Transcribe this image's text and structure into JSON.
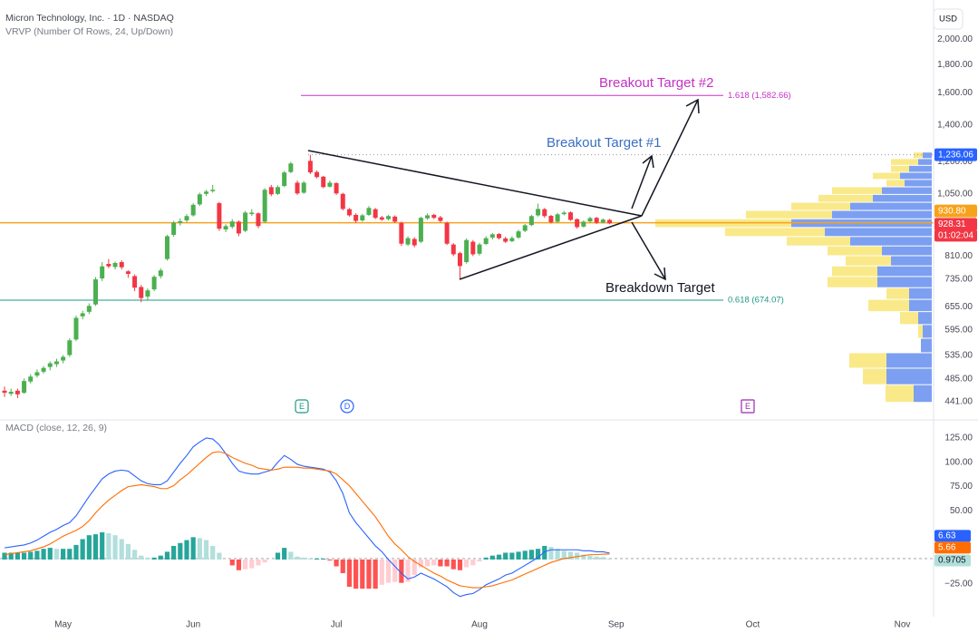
{
  "chart_data": [
    {
      "type": "candlestick",
      "title": "Micron Technology, Inc. · 1D · NASDAQ",
      "currency": "USD",
      "countdown": "01:02:04",
      "log": true,
      "grid": false,
      "xlim": [
        -0.7,
        142.8
      ],
      "ylim": [
        413.7,
        2357
      ],
      "yticks": [
        {
          "value": 2000,
          "label": "2,000.00"
        },
        {
          "value": 1800,
          "label": "1,800.00"
        },
        {
          "value": 1600,
          "label": "1,600.00"
        },
        {
          "value": 1400,
          "label": "1,400.00"
        },
        {
          "value": 1200,
          "label": "1,200.00"
        },
        {
          "value": 1050,
          "label": "1,050.00"
        },
        {
          "value": 810,
          "label": "810.00"
        },
        {
          "value": 735,
          "label": "735.00"
        },
        {
          "value": 655,
          "label": "655.00"
        },
        {
          "value": 595,
          "label": "595.00"
        },
        {
          "value": 535,
          "label": "535.00"
        },
        {
          "value": 485,
          "label": "485.00"
        },
        {
          "value": 441,
          "label": "441.00"
        }
      ],
      "up_color": "#4caf50",
      "down_color": "#f23645",
      "candles": [
        [
          462,
          470,
          450,
          458
        ],
        [
          456,
          466,
          452,
          460
        ],
        [
          462,
          466,
          448,
          455
        ],
        [
          458,
          486,
          456,
          481
        ],
        [
          480,
          495,
          476,
          490
        ],
        [
          492,
          505,
          488,
          499
        ],
        [
          500,
          512,
          496,
          508
        ],
        [
          510,
          522,
          503,
          518
        ],
        [
          516,
          528,
          510,
          522
        ],
        [
          524,
          536,
          518,
          532
        ],
        [
          536,
          575,
          532,
          570
        ],
        [
          572,
          632,
          568,
          626
        ],
        [
          630,
          645,
          622,
          638
        ],
        [
          642,
          665,
          636,
          658
        ],
        [
          662,
          742,
          658,
          735
        ],
        [
          738,
          790,
          730,
          776
        ],
        [
          784,
          800,
          770,
          776
        ],
        [
          774,
          792,
          766,
          787
        ],
        [
          790,
          796,
          766,
          773
        ],
        [
          760,
          764,
          740,
          752
        ],
        [
          745,
          750,
          700,
          710
        ],
        [
          712,
          718,
          668,
          680
        ],
        [
          684,
          708,
          675,
          702
        ],
        [
          705,
          748,
          700,
          743
        ],
        [
          745,
          770,
          738,
          763
        ],
        [
          800,
          885,
          795,
          880
        ],
        [
          885,
          938,
          878,
          931
        ],
        [
          930,
          948,
          920,
          937
        ],
        [
          940,
          965,
          932,
          957
        ],
        [
          960,
          1010,
          955,
          1003
        ],
        [
          1005,
          1055,
          998,
          1048
        ],
        [
          1050,
          1068,
          1040,
          1060
        ],
        [
          1062,
          1090,
          1055,
          1068
        ],
        [
          1010,
          1015,
          900,
          908
        ],
        [
          905,
          925,
          895,
          918
        ],
        [
          915,
          945,
          908,
          936
        ],
        [
          935,
          940,
          880,
          890
        ],
        [
          900,
          978,
          895,
          971
        ],
        [
          965,
          985,
          958,
          971
        ],
        [
          968,
          972,
          910,
          918
        ],
        [
          935,
          1075,
          930,
          1068
        ],
        [
          1080,
          1090,
          1040,
          1048
        ],
        [
          1050,
          1088,
          1045,
          1080
        ],
        [
          1085,
          1155,
          1080,
          1148
        ],
        [
          1150,
          1200,
          1145,
          1192
        ],
        [
          1100,
          1110,
          1045,
          1052
        ],
        [
          1055,
          1108,
          1050,
          1100
        ],
        [
          1205,
          1236,
          1140,
          1148
        ],
        [
          1150,
          1158,
          1120,
          1126
        ],
        [
          1128,
          1132,
          1075,
          1080
        ],
        [
          1082,
          1110,
          1078,
          1100
        ],
        [
          1098,
          1102,
          1045,
          1052
        ],
        [
          1050,
          1055,
          980,
          986
        ],
        [
          985,
          990,
          955,
          960
        ],
        [
          962,
          968,
          930,
          938
        ],
        [
          940,
          966,
          935,
          960
        ],
        [
          962,
          998,
          958,
          990
        ],
        [
          985,
          990,
          945,
          950
        ],
        [
          952,
          958,
          938,
          943
        ],
        [
          945,
          962,
          940,
          957
        ],
        [
          955,
          960,
          930,
          935
        ],
        [
          930,
          935,
          845,
          853
        ],
        [
          850,
          880,
          845,
          873
        ],
        [
          870,
          876,
          840,
          847
        ],
        [
          860,
          955,
          855,
          950
        ],
        [
          948,
          968,
          942,
          960
        ],
        [
          962,
          966,
          945,
          950
        ],
        [
          952,
          958,
          932,
          938
        ],
        [
          930,
          935,
          848,
          853
        ],
        [
          850,
          855,
          810,
          816
        ],
        [
          820,
          825,
          735,
          777
        ],
        [
          790,
          872,
          785,
          866
        ],
        [
          860,
          866,
          810,
          816
        ],
        [
          818,
          856,
          812,
          850
        ],
        [
          852,
          880,
          848,
          873
        ],
        [
          875,
          892,
          868,
          887
        ],
        [
          888,
          892,
          868,
          873
        ],
        [
          872,
          878,
          855,
          860
        ],
        [
          862,
          880,
          858,
          873
        ],
        [
          875,
          904,
          870,
          898
        ],
        [
          900,
          926,
          895,
          921
        ],
        [
          922,
          962,
          918,
          957
        ],
        [
          960,
          1008,
          955,
          986
        ],
        [
          985,
          990,
          950,
          957
        ],
        [
          958,
          962,
          928,
          933
        ],
        [
          935,
          970,
          930,
          964
        ],
        [
          965,
          978,
          960,
          971
        ],
        [
          972,
          976,
          938,
          942
        ],
        [
          945,
          948,
          908,
          914
        ],
        [
          916,
          940,
          912,
          935
        ],
        [
          936,
          955,
          930,
          949
        ],
        [
          950,
          954,
          926,
          931
        ],
        [
          932,
          948,
          928,
          943
        ],
        [
          942,
          946,
          925,
          928.31
        ]
      ],
      "levels": [
        {
          "value": 1582.66,
          "label": "1.618 (1,582.66)",
          "color": "#c530c5"
        },
        {
          "value": 674.07,
          "label": "0.618 (674.07)",
          "color": "#1e9886"
        }
      ],
      "price_labels": [
        {
          "value": 1236.06,
          "label": "1,236.06",
          "color": "#2962ff"
        },
        {
          "value": 930.8,
          "label": "930.80",
          "color": "#f7a21b"
        },
        {
          "value": 928.31,
          "label": "928.31",
          "color": "#f23645"
        }
      ],
      "annotations": [
        {
          "text": "Breakout Target #2",
          "color": "#c530c5"
        },
        {
          "text": "Breakout Target #1",
          "color": "#3a6fc4"
        },
        {
          "text": "Breakdown Target",
          "color": "#131722"
        }
      ],
      "events": [
        "E",
        "D",
        "E"
      ],
      "volume_profile": {
        "title": "VRVP (Number Of Rows, 24, Up/Down)",
        "up_color": "#f7e36b",
        "down_color": "#5b87ee",
        "bins": [
          440,
          473.75,
          507.5,
          541.25,
          575,
          608.75,
          642.5,
          676.25,
          710,
          743.75,
          777.5,
          811.25,
          845,
          878.75,
          912.5,
          946.25,
          980,
          1013.75,
          1047.5,
          1081.25,
          1115,
          1148.75,
          1182.5,
          1216.25,
          1250
        ],
        "up": [
          31,
          26,
          41,
          0,
          5,
          20,
          45,
          25,
          55,
          50,
          50,
          60,
          70,
          110,
          150,
          95,
          65,
          60,
          55,
          20,
          30,
          20,
          30,
          10
        ],
        "down": [
          20,
          50,
          50,
          12,
          10,
          15,
          25,
          25,
          60,
          60,
          45,
          55,
          90,
          118,
          155,
          110,
          90,
          65,
          55,
          30,
          35,
          25,
          15,
          10
        ]
      }
    },
    {
      "type": "macd",
      "title": "MACD (close, 12, 26, 9)",
      "xlim": [
        -0.7,
        142.8
      ],
      "ylim": [
        -58.8,
        141.8
      ],
      "yticks": [
        {
          "value": 125,
          "label": "125.00"
        },
        {
          "value": 100,
          "label": "100.00"
        },
        {
          "value": 75,
          "label": "75.00"
        },
        {
          "value": 50,
          "label": "50.00"
        },
        {
          "value": -25,
          "label": "−25.00"
        }
      ],
      "xticks": [
        {
          "value": 9,
          "label": "May"
        },
        {
          "value": 29,
          "label": "Jun"
        },
        {
          "value": 51,
          "label": "Jul"
        },
        {
          "value": 73,
          "label": "Aug"
        },
        {
          "value": 94,
          "label": "Sep"
        },
        {
          "value": 115,
          "label": "Oct"
        },
        {
          "value": 138,
          "label": "Nov"
        }
      ],
      "series": [
        {
          "color": "#2962ff",
          "values": [
            12,
            13,
            14,
            15,
            17,
            20,
            24,
            28,
            31,
            35,
            38,
            45,
            55,
            65,
            74,
            83,
            88,
            91,
            92,
            91,
            86,
            81,
            78,
            77,
            77,
            81,
            90,
            99,
            107,
            116,
            121,
            125,
            124,
            118,
            109,
            99,
            91,
            89,
            88,
            88,
            90,
            92,
            100,
            107,
            103,
            98,
            96,
            95,
            94,
            93,
            90,
            81,
            68,
            48,
            38,
            30,
            22,
            14,
            8,
            0,
            -7,
            -14,
            -20,
            -18,
            -14,
            -17,
            -20,
            -24,
            -28,
            -34,
            -38,
            -36,
            -35,
            -31,
            -26,
            -23,
            -20,
            -16,
            -14,
            -10,
            -6,
            -2,
            2,
            8,
            10,
            10,
            10,
            10,
            10,
            9,
            9,
            8,
            8,
            6.63
          ]
        },
        {
          "color": "#ff6d00",
          "values": [
            5,
            6,
            7,
            8,
            9,
            11,
            13,
            16,
            20,
            24,
            27,
            30,
            34,
            40,
            48,
            55,
            61,
            66,
            71,
            75,
            76,
            77,
            76,
            75,
            73,
            73,
            76,
            82,
            87,
            93,
            99,
            105,
            110,
            111,
            109,
            105,
            102,
            99,
            97,
            94,
            93,
            92,
            93,
            95,
            95,
            95,
            94,
            94,
            93,
            92,
            91,
            88,
            82,
            76,
            68,
            60,
            52,
            44,
            34,
            24,
            16,
            10,
            3,
            -2,
            -6,
            -10,
            -14,
            -17,
            -21,
            -24,
            -27,
            -28,
            -29,
            -29,
            -28,
            -27,
            -25,
            -23,
            -21,
            -18,
            -15,
            -12,
            -9,
            -6,
            -3,
            -1,
            1,
            2,
            3,
            4,
            5,
            5,
            5.5,
            5.66
          ]
        }
      ],
      "histogram": {
        "colors": [
          "#26a69a",
          "#b2dfdb",
          "#ffcdd2",
          "#ff5252"
        ],
        "values": [
          7,
          7,
          7,
          7,
          8,
          9,
          11,
          12,
          11,
          11,
          11,
          15,
          21,
          25,
          26,
          28,
          27,
          25,
          21,
          16,
          10,
          4,
          2,
          2,
          4,
          8,
          14,
          17,
          20,
          23,
          22,
          20,
          14,
          7,
          0,
          -6,
          -11,
          -10,
          -9,
          -6,
          -3,
          0,
          7,
          12,
          8,
          3,
          2,
          1,
          1,
          1,
          -1,
          -7,
          -14,
          -28,
          -30,
          -30,
          -30,
          -30,
          -26,
          -24,
          -23,
          -24,
          -23,
          -16,
          -8,
          -7,
          -6,
          -7,
          -7,
          -10,
          -11,
          -8,
          -6,
          -2,
          2,
          4,
          5,
          7,
          7,
          8,
          9,
          10,
          11,
          14,
          13,
          11,
          9,
          8,
          7,
          5,
          4,
          3,
          2.5,
          0.9705
        ]
      },
      "last_values": [
        6.63,
        5.66,
        0.9705
      ],
      "last_colors": [
        "#2962ff",
        "#ff6d00",
        "#b2dfdb"
      ]
    }
  ]
}
